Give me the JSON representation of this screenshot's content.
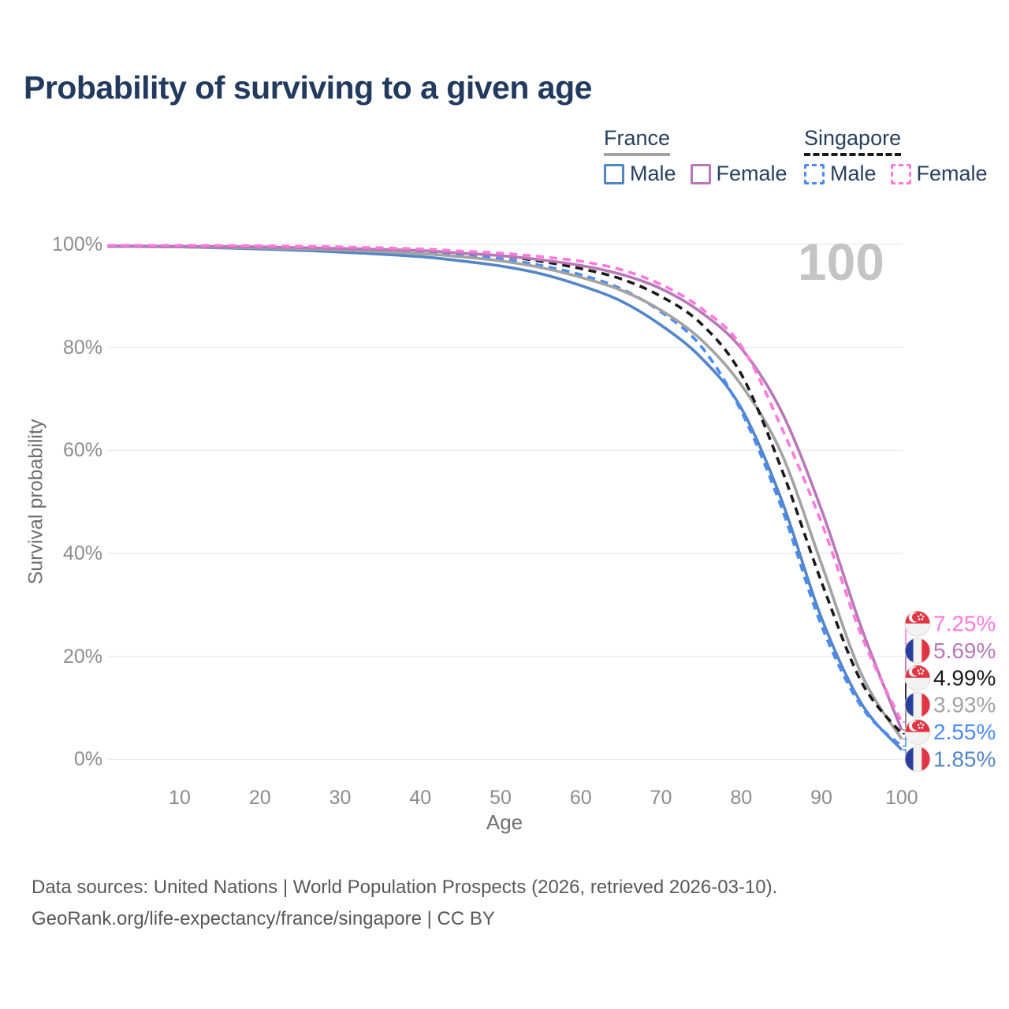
{
  "title": "Probability of surviving to a given age",
  "watermark": "100",
  "legend": {
    "groups": [
      {
        "name": "France",
        "line_style": "solid",
        "underline_color": "#a2a2a2",
        "items": [
          {
            "label": "Male",
            "color": "#5386c6"
          },
          {
            "label": "Female",
            "color": "#b878b8"
          }
        ]
      },
      {
        "name": "Singapore",
        "line_style": "dashed",
        "underline_color": "#1a1a1a",
        "items": [
          {
            "label": "Male",
            "color": "#4b8bf5"
          },
          {
            "label": "Female",
            "color": "#ff78dc"
          }
        ]
      }
    ]
  },
  "chart_data": {
    "type": "line",
    "title": "Probability of surviving to a given age",
    "xlabel": "Age",
    "ylabel": "Survival probability",
    "xlim": [
      0,
      100
    ],
    "ylim": [
      0,
      100
    ],
    "grid": true,
    "legend_position": "top-right",
    "x_ticks": [
      10,
      20,
      30,
      40,
      50,
      60,
      70,
      80,
      90,
      100
    ],
    "y_ticks": [
      0,
      20,
      40,
      60,
      80,
      100
    ],
    "y_tick_suffix": "%",
    "age_indicator": "100",
    "x": [
      1,
      10,
      20,
      30,
      40,
      45,
      50,
      55,
      60,
      65,
      70,
      75,
      80,
      85,
      90,
      95,
      100
    ],
    "series": [
      {
        "name": "France Male",
        "country": "France",
        "sex": "Male",
        "color": "#5386c6",
        "dash": false,
        "flag": "fr",
        "end_label": "1.85%",
        "values": [
          99.6,
          99.5,
          99.1,
          98.5,
          97.6,
          96.8,
          95.8,
          94.3,
          92.0,
          89.0,
          84.3,
          78.0,
          68.2,
          50.5,
          27.5,
          10.8,
          1.85
        ]
      },
      {
        "name": "Singapore Male",
        "country": "Singapore",
        "sex": "Male",
        "color": "#4b8bf5",
        "dash": true,
        "flag": "sg",
        "end_label": "2.55%",
        "values": [
          99.7,
          99.6,
          99.5,
          99.1,
          98.5,
          97.9,
          97.2,
          95.9,
          94.1,
          91.4,
          86.9,
          80.2,
          67.6,
          49.0,
          26.0,
          10.2,
          2.55
        ]
      },
      {
        "name": "France",
        "country": "France",
        "sex": "Both",
        "color": "#a2a2a2",
        "dash": false,
        "flag": "fr",
        "end_label": "3.93%",
        "values": [
          99.6,
          99.5,
          99.3,
          98.9,
          98.2,
          97.6,
          96.8,
          95.5,
          93.6,
          91.1,
          87.2,
          81.5,
          72.7,
          59.5,
          38.0,
          16.5,
          3.93
        ]
      },
      {
        "name": "Singapore",
        "country": "Singapore",
        "sex": "Both",
        "color": "#1a1a1a",
        "dash": true,
        "flag": "sg",
        "end_label": "4.99%",
        "values": [
          99.7,
          99.6,
          99.5,
          99.3,
          98.8,
          98.3,
          97.8,
          96.7,
          95.3,
          93.3,
          89.9,
          84.6,
          74.8,
          56.5,
          34.5,
          15.0,
          4.99
        ]
      },
      {
        "name": "France Female",
        "country": "France",
        "sex": "Female",
        "color": "#b878b8",
        "dash": false,
        "flag": "fr",
        "end_label": "5.69%",
        "values": [
          99.7,
          99.6,
          99.5,
          99.2,
          98.8,
          98.3,
          97.8,
          97.0,
          95.9,
          94.2,
          91.4,
          86.8,
          79.8,
          67.6,
          48.5,
          25.5,
          5.69
        ]
      },
      {
        "name": "Singapore Female",
        "country": "Singapore",
        "sex": "Female",
        "color": "#ff78dc",
        "dash": true,
        "flag": "sg",
        "end_label": "7.25%",
        "values": [
          99.8,
          99.8,
          99.7,
          99.5,
          99.1,
          98.7,
          98.3,
          97.6,
          96.7,
          95.1,
          92.2,
          87.6,
          80.3,
          64.5,
          46.0,
          24.0,
          7.25
        ]
      }
    ]
  },
  "footer": {
    "line1": "Data sources: United Nations | World Population Prospects (2026, retrieved 2026-03-10).",
    "line2": "GeoRank.org/life-expectancy/france/singapore | CC BY"
  }
}
